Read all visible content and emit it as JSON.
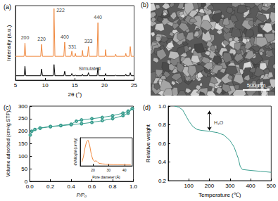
{
  "chart_data": [
    {
      "type": "line",
      "panel": "(a)",
      "x_label": "2θ (°)",
      "y_label": "Intensity (a.u.)",
      "x": [
        5.0,
        6.45,
        6.6,
        6.75,
        9.25,
        9.4,
        9.55,
        11.35,
        11.5,
        11.65,
        13.15,
        13.3,
        13.45,
        14.35,
        14.5,
        14.65,
        15.0,
        15.1,
        15.2,
        16.2,
        16.3,
        16.4,
        17.15,
        17.3,
        17.45,
        18.75,
        18.9,
        19.05,
        20.1,
        20.2,
        20.3,
        21.8,
        21.9,
        22.0,
        23.5,
        23.6,
        23.7,
        24.2,
        24.35,
        24.5,
        25.0
      ],
      "series": [
        {
          "color": "#f0883e",
          "values": [
            0.32,
            0.32,
            0.5,
            0.32,
            0.32,
            0.48,
            0.32,
            0.32,
            0.96,
            0.32,
            0.32,
            0.51,
            0.32,
            0.32,
            0.39,
            0.32,
            0.32,
            0.36,
            0.32,
            0.32,
            0.4,
            0.32,
            0.32,
            0.45,
            0.32,
            0.32,
            0.77,
            0.32,
            0.32,
            0.41,
            0.32,
            0.32,
            0.35,
            0.32,
            0.32,
            0.36,
            0.32,
            0.32,
            0.45,
            0.32,
            0.32
          ]
        },
        {
          "color": "#000000",
          "values": [
            0.06,
            0.06,
            0.19,
            0.06,
            0.06,
            0.15,
            0.06,
            0.06,
            0.21,
            0.06,
            0.06,
            0.12,
            0.06,
            0.06,
            0.09,
            0.06,
            0.06,
            0.07,
            0.06,
            0.06,
            0.08,
            0.06,
            0.06,
            0.1,
            0.06,
            0.06,
            0.17,
            0.06,
            0.06,
            0.09,
            0.06,
            0.06,
            0.07,
            0.06,
            0.06,
            0.08,
            0.06,
            0.06,
            0.1,
            0.06,
            0.06
          ]
        }
      ],
      "xlim": [
        5,
        25
      ],
      "xticks": [
        5,
        10,
        15,
        20,
        25
      ],
      "ylim": [
        0,
        1
      ],
      "tick_labels": "x",
      "grid": false,
      "annotations": [
        {
          "text": "200",
          "x": 6.6,
          "y": 0.57
        },
        {
          "text": "220",
          "x": 9.4,
          "y": 0.55
        },
        {
          "text": "222",
          "x": 12.6,
          "y": 0.94
        },
        {
          "text": "400",
          "x": 13.3,
          "y": 0.58
        },
        {
          "text": "331",
          "x": 14.6,
          "y": 0.45
        },
        {
          "text": "333",
          "x": 17.3,
          "y": 0.52
        },
        {
          "text": "440",
          "x": 18.9,
          "y": 0.84
        },
        {
          "text": "Simulated",
          "x": 17.5,
          "y": 0.16
        }
      ]
    },
    {
      "type": "image",
      "panel": "(b)",
      "scale_bar": "500 nm"
    },
    {
      "type": "line",
      "panel": "(c)",
      "x_label": "P/P₀",
      "y_label": "Volume adsorbed (cm³/g STP)",
      "series": [
        {
          "color": "#3a9e8f",
          "marker": "circle",
          "x": [
            0.005,
            0.02,
            0.05,
            0.1,
            0.2,
            0.3,
            0.4,
            0.5,
            0.6,
            0.7,
            0.8,
            0.9,
            0.95,
            0.99
          ],
          "values": [
            185,
            200,
            207,
            212,
            218,
            222,
            226,
            230,
            235,
            242,
            250,
            262,
            272,
            290
          ]
        },
        {
          "color": "#3a9e8f",
          "marker": "circle",
          "x": [
            0.99,
            0.95,
            0.9,
            0.8,
            0.7,
            0.6,
            0.5,
            0.45,
            0.4,
            0.3,
            0.2,
            0.1
          ],
          "values": [
            290,
            280,
            272,
            262,
            255,
            250,
            245,
            240,
            228,
            223,
            219,
            213
          ]
        }
      ],
      "xlim": [
        0,
        1
      ],
      "xticks": [
        {
          "value": 0,
          "label": "0.0"
        },
        {
          "value": 0.2,
          "label": "0.2"
        },
        {
          "value": 0.4,
          "label": "0.4"
        },
        {
          "value": 0.6,
          "label": "0.6"
        },
        {
          "value": 0.8,
          "label": "0.8"
        },
        {
          "value": 1,
          "label": "1.0"
        }
      ],
      "ylim": [
        0,
        300
      ],
      "yticks": [
        0,
        50,
        100,
        150,
        200,
        250,
        300
      ],
      "grid": false
    },
    {
      "type": "line",
      "x_label": "Pore diameter (Å)",
      "y_label": "dV/dlogW (cm³/g)",
      "x": [
        13,
        14,
        15,
        16,
        17,
        18,
        19,
        20,
        21,
        22,
        23,
        24,
        26,
        28,
        30,
        33,
        36,
        40,
        44
      ],
      "series": [
        {
          "color": "#f0883e",
          "values": [
            0.15,
            0.35,
            0.7,
            0.95,
            1.0,
            0.8,
            0.45,
            0.25,
            0.18,
            0.2,
            0.15,
            0.1,
            0.08,
            0.07,
            0.06,
            0.05,
            0.05,
            0.04,
            0.04
          ]
        }
      ],
      "xlim": [
        12,
        45
      ],
      "xticks": [
        20,
        30,
        40
      ],
      "ylim": [
        0,
        1.1
      ],
      "tick_labels": "x",
      "grid": false
    },
    {
      "type": "line",
      "panel": "(d)",
      "x_label": "Temperature (℃)",
      "y_label": "Relative weight",
      "x": [
        30,
        50,
        70,
        90,
        100,
        120,
        140,
        160,
        200,
        240,
        270,
        300,
        320,
        340,
        350,
        360,
        400,
        450,
        500
      ],
      "series": [
        {
          "color": "#3a9e8f",
          "values": [
            1.0,
            0.99,
            0.96,
            0.88,
            0.84,
            0.78,
            0.75,
            0.74,
            0.73,
            0.715,
            0.69,
            0.63,
            0.56,
            0.44,
            0.35,
            0.32,
            0.31,
            0.3,
            0.29
          ]
        }
      ],
      "xlim": [
        0,
        500
      ],
      "xticks": [
        100,
        200,
        300,
        400,
        500
      ],
      "ylim": [
        0.2,
        1.0
      ],
      "yticks": [
        0.2,
        0.4,
        0.6,
        0.8,
        {
          "value": 1.0,
          "label": "1.0"
        }
      ],
      "grid": false,
      "annotations": [
        {
          "text": "H₂O",
          "x": 245,
          "y": 0.82,
          "arrow_x": 200,
          "arrow_y": [
            0.95,
            0.74
          ]
        }
      ]
    }
  ]
}
